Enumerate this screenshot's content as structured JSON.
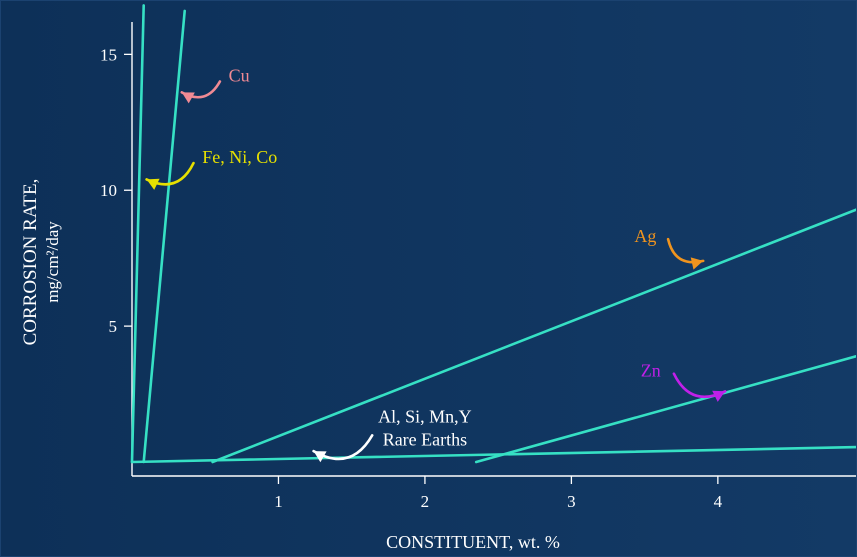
{
  "chart_data": {
    "type": "line",
    "xlabel": "CONSTITUENT, wt. %",
    "ylabel": "CORROSION RATE,",
    "ylabel_sub": "mg/cm²/day",
    "xlim": [
      0,
      4.95
    ],
    "ylim": [
      0,
      17
    ],
    "xticks": [
      1,
      2,
      3,
      4
    ],
    "yticks": [
      5,
      10,
      15
    ],
    "grid": false,
    "colors": {
      "background": "#0f3560",
      "axes": "#ffffff",
      "line": "#36e0c4",
      "Cu": "#f08a94",
      "Fe, Ni, Co": "#e6e000",
      "Ag": "#f0941e",
      "Zn": "#c020e8",
      "Al, Si, Mn,Y Rare Earths": "#ffffff"
    },
    "series": [
      {
        "name": "Fe, Ni, Co",
        "x": [
          0.0,
          0.08
        ],
        "y": [
          0.0,
          16.8
        ]
      },
      {
        "name": "Cu",
        "x": [
          0.08,
          0.36
        ],
        "y": [
          0.0,
          16.6
        ]
      },
      {
        "name": "Ag",
        "x": [
          0.55,
          4.95
        ],
        "y": [
          0.0,
          9.3
        ]
      },
      {
        "name": "Zn",
        "x": [
          2.35,
          4.95
        ],
        "y": [
          0.0,
          3.9
        ]
      },
      {
        "name": "Al, Si, Mn,Y Rare Earths",
        "x": [
          0.0,
          4.95
        ],
        "y": [
          0.0,
          0.55
        ]
      }
    ],
    "annotations": [
      {
        "series": "Cu",
        "lines": [
          "Cu"
        ],
        "text_at": [
          0.66,
          14.0
        ],
        "anchor": "start",
        "arrow_from": [
          0.6,
          14.0
        ],
        "arrow_to": [
          0.34,
          13.6
        ],
        "bend": -0.5
      },
      {
        "series": "Fe, Ni, Co",
        "lines": [
          "Fe, Ni, Co"
        ],
        "text_at": [
          0.48,
          11.0
        ],
        "anchor": "start",
        "arrow_from": [
          0.42,
          11.0
        ],
        "arrow_to": [
          0.1,
          10.4
        ],
        "bend": -0.5
      },
      {
        "series": "Ag",
        "lines": [
          "Ag"
        ],
        "text_at": [
          3.58,
          8.1
        ],
        "anchor": "end",
        "arrow_from": [
          3.66,
          8.2
        ],
        "arrow_to": [
          3.9,
          7.4
        ],
        "bend": 0.5
      },
      {
        "series": "Zn",
        "lines": [
          "Zn"
        ],
        "text_at": [
          3.61,
          3.15
        ],
        "anchor": "end",
        "arrow_from": [
          3.7,
          3.25
        ],
        "arrow_to": [
          4.05,
          2.6
        ],
        "bend": 0.5
      },
      {
        "series": "Al, Si, Mn,Y Rare Earths",
        "lines": [
          "Al, Si, Mn,Y",
          "Rare Earths"
        ],
        "text_at": [
          2.0,
          1.45
        ],
        "anchor": "middle",
        "arrow_from": [
          1.64,
          0.98
        ],
        "arrow_to": [
          1.24,
          0.4
        ],
        "bend": -0.5
      }
    ]
  }
}
